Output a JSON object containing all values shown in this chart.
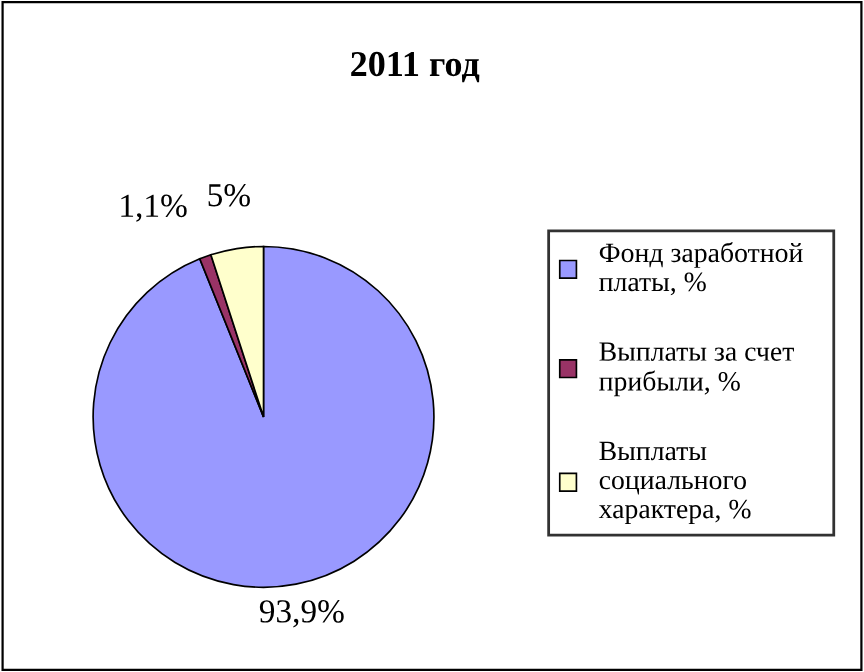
{
  "chart_data": {
    "type": "pie",
    "title": "2011 год",
    "categories": [
      "Фонд заработной платы, %",
      "Выплаты за счет прибыли, %",
      "Выплаты социального характера, %"
    ],
    "values": [
      93.9,
      1.1,
      5
    ],
    "colors": [
      "#9999ff",
      "#993366",
      "#ffffcc"
    ],
    "value_labels": [
      "93,9%",
      "1,1%",
      "5%"
    ],
    "legend": "right"
  }
}
